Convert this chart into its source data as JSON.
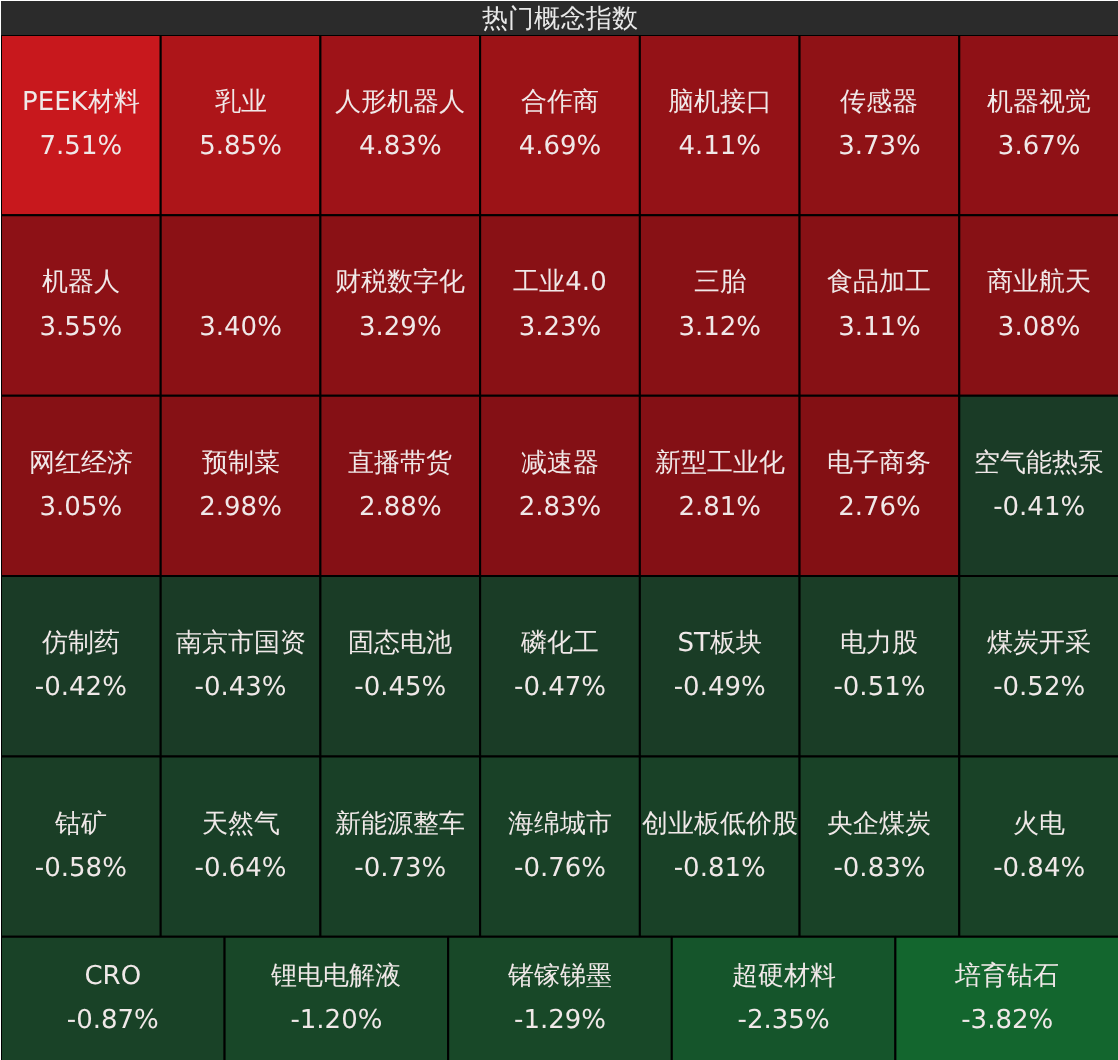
{
  "chart_data": {
    "type": "other",
    "title": "热门概念指数",
    "categories": [
      "PEEK材料",
      "乳业",
      "人形机器人",
      "合作商",
      "脑机接口",
      "传感器",
      "机器视觉",
      "机器人",
      null,
      "财税数字化",
      "工业4.0",
      "三胎",
      "食品加工",
      "商业航天",
      "网红经济",
      "预制菜",
      "直播带货",
      "减速器",
      "新型工业化",
      "电子商务",
      "空气能热泵",
      "仿制药",
      "南京市国资",
      "固态电池",
      "磷化工",
      "ST板块",
      "电力股",
      "煤炭开采",
      "钴矿",
      "天然气",
      "新能源整车",
      "海绵城市",
      "创业板低价股",
      "央企煤炭",
      "火电",
      "CRO",
      "锂电电解液",
      "锗镓锑墨",
      "超硬材料",
      "培育钻石"
    ],
    "values": [
      7.51,
      5.85,
      4.83,
      4.69,
      4.11,
      3.73,
      3.67,
      3.55,
      3.4,
      3.29,
      3.23,
      3.12,
      3.11,
      3.08,
      3.05,
      2.98,
      2.88,
      2.83,
      2.81,
      2.76,
      -0.41,
      -0.42,
      -0.43,
      -0.45,
      -0.47,
      -0.49,
      -0.51,
      -0.52,
      -0.58,
      -0.64,
      -0.73,
      -0.76,
      -0.81,
      -0.83,
      -0.84,
      -0.87,
      -1.2,
      -1.29,
      -2.35,
      -3.82
    ],
    "value_labels": [
      "7.51%",
      "5.85%",
      "4.83%",
      "4.69%",
      "4.11%",
      "3.73%",
      "3.67%",
      "3.55%",
      "3.40%",
      "3.29%",
      "3.23%",
      "3.12%",
      "3.11%",
      "3.08%",
      "3.05%",
      "2.98%",
      "2.88%",
      "2.83%",
      "2.81%",
      "2.76%",
      "-0.41%",
      "-0.42%",
      "-0.43%",
      "-0.45%",
      "-0.47%",
      "-0.49%",
      "-0.51%",
      "-0.52%",
      "-0.58%",
      "-0.64%",
      "-0.73%",
      "-0.76%",
      "-0.81%",
      "-0.83%",
      "-0.84%",
      "-0.87%",
      "-1.20%",
      "-1.29%",
      "-2.35%",
      "-3.82%"
    ]
  }
}
